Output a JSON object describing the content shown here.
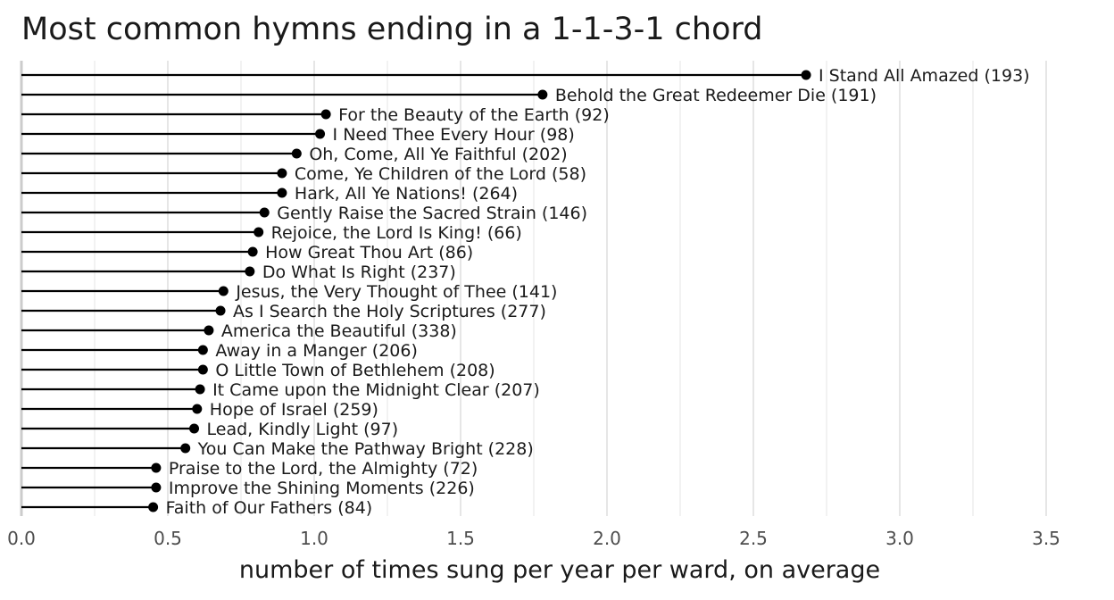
{
  "chart_data": {
    "type": "lollipop",
    "title": "Most common hymns ending in a 1-1-3-1 chord",
    "xlabel": "number of times sung per year per ward, on average",
    "ylabel": "",
    "xlim": [
      0,
      3.5
    ],
    "xticks": [
      0.0,
      0.5,
      1.0,
      1.5,
      2.0,
      2.5,
      3.0,
      3.5
    ],
    "xtick_labels": [
      "0.0",
      "0.5",
      "1.0",
      "1.5",
      "2.0",
      "2.5",
      "3.0",
      "3.5"
    ],
    "grid": true,
    "legend": "none",
    "colors": {
      "mark": "#000000",
      "grid": "#e6e6e6",
      "baseline": "#cccccc"
    },
    "points": [
      {
        "label": "I Stand All Amazed (193)",
        "value": 2.68
      },
      {
        "label": "Behold the Great Redeemer Die (191)",
        "value": 1.78
      },
      {
        "label": "For the Beauty of the Earth (92)",
        "value": 1.04
      },
      {
        "label": "I Need Thee Every Hour (98)",
        "value": 1.02
      },
      {
        "label": "Oh, Come, All Ye Faithful (202)",
        "value": 0.94
      },
      {
        "label": "Come, Ye Children of the Lord (58)",
        "value": 0.89
      },
      {
        "label": "Hark, All Ye Nations! (264)",
        "value": 0.89
      },
      {
        "label": "Gently Raise the Sacred Strain (146)",
        "value": 0.83
      },
      {
        "label": "Rejoice, the Lord Is King! (66)",
        "value": 0.81
      },
      {
        "label": "How Great Thou Art (86)",
        "value": 0.79
      },
      {
        "label": "Do What Is Right (237)",
        "value": 0.78
      },
      {
        "label": "Jesus, the Very Thought of Thee (141)",
        "value": 0.69
      },
      {
        "label": "As I Search the Holy Scriptures (277)",
        "value": 0.68
      },
      {
        "label": "America the Beautiful (338)",
        "value": 0.64
      },
      {
        "label": "Away in a Manger (206)",
        "value": 0.62
      },
      {
        "label": "O Little Town of Bethlehem (208)",
        "value": 0.62
      },
      {
        "label": "It Came upon the Midnight Clear (207)",
        "value": 0.61
      },
      {
        "label": "Hope of Israel (259)",
        "value": 0.6
      },
      {
        "label": "Lead, Kindly Light (97)",
        "value": 0.59
      },
      {
        "label": "You Can Make the Pathway Bright (228)",
        "value": 0.56
      },
      {
        "label": "Praise to the Lord, the Almighty (72)",
        "value": 0.46
      },
      {
        "label": "Improve the Shining Moments (226)",
        "value": 0.46
      },
      {
        "label": "Faith of Our Fathers (84)",
        "value": 0.45
      }
    ]
  }
}
